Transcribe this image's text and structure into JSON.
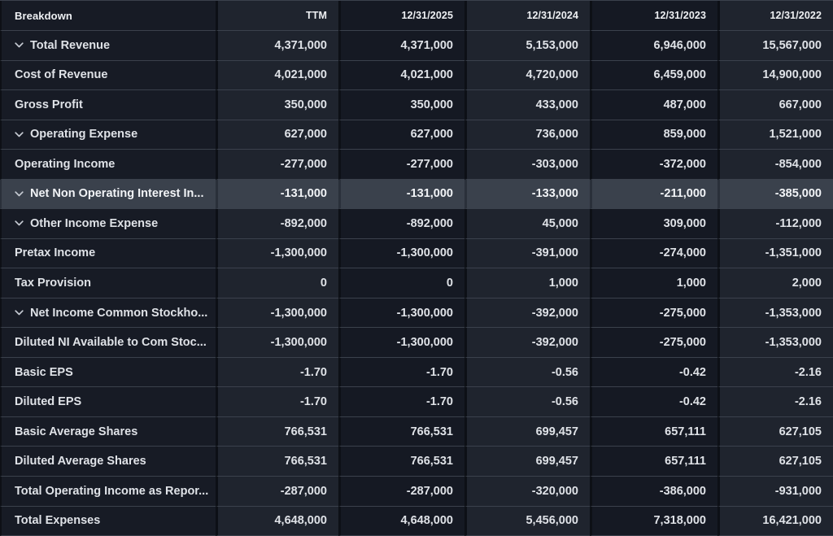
{
  "table": {
    "columns": [
      "Breakdown",
      "TTM",
      "12/31/2025",
      "12/31/2024",
      "12/31/2023",
      "12/31/2022"
    ],
    "rows": [
      {
        "label": "Total Revenue",
        "expandable": true,
        "highlighted": false,
        "values": [
          "4,371,000",
          "4,371,000",
          "5,153,000",
          "6,946,000",
          "15,567,000"
        ]
      },
      {
        "label": "Cost of Revenue",
        "expandable": false,
        "highlighted": false,
        "values": [
          "4,021,000",
          "4,021,000",
          "4,720,000",
          "6,459,000",
          "14,900,000"
        ]
      },
      {
        "label": "Gross Profit",
        "expandable": false,
        "highlighted": false,
        "values": [
          "350,000",
          "350,000",
          "433,000",
          "487,000",
          "667,000"
        ]
      },
      {
        "label": "Operating Expense",
        "expandable": true,
        "highlighted": false,
        "values": [
          "627,000",
          "627,000",
          "736,000",
          "859,000",
          "1,521,000"
        ]
      },
      {
        "label": "Operating Income",
        "expandable": false,
        "highlighted": false,
        "values": [
          "-277,000",
          "-277,000",
          "-303,000",
          "-372,000",
          "-854,000"
        ]
      },
      {
        "label": "Net Non Operating Interest In...",
        "expandable": true,
        "highlighted": true,
        "values": [
          "-131,000",
          "-131,000",
          "-133,000",
          "-211,000",
          "-385,000"
        ]
      },
      {
        "label": "Other Income Expense",
        "expandable": true,
        "highlighted": false,
        "values": [
          "-892,000",
          "-892,000",
          "45,000",
          "309,000",
          "-112,000"
        ]
      },
      {
        "label": "Pretax Income",
        "expandable": false,
        "highlighted": false,
        "values": [
          "-1,300,000",
          "-1,300,000",
          "-391,000",
          "-274,000",
          "-1,351,000"
        ]
      },
      {
        "label": "Tax Provision",
        "expandable": false,
        "highlighted": false,
        "values": [
          "0",
          "0",
          "1,000",
          "1,000",
          "2,000"
        ]
      },
      {
        "label": "Net Income Common Stockho...",
        "expandable": true,
        "highlighted": false,
        "values": [
          "-1,300,000",
          "-1,300,000",
          "-392,000",
          "-275,000",
          "-1,353,000"
        ]
      },
      {
        "label": "Diluted NI Available to Com Stoc...",
        "expandable": false,
        "highlighted": false,
        "values": [
          "-1,300,000",
          "-1,300,000",
          "-392,000",
          "-275,000",
          "-1,353,000"
        ]
      },
      {
        "label": "Basic EPS",
        "expandable": false,
        "highlighted": false,
        "values": [
          "-1.70",
          "-1.70",
          "-0.56",
          "-0.42",
          "-2.16"
        ]
      },
      {
        "label": "Diluted EPS",
        "expandable": false,
        "highlighted": false,
        "values": [
          "-1.70",
          "-1.70",
          "-0.56",
          "-0.42",
          "-2.16"
        ]
      },
      {
        "label": "Basic Average Shares",
        "expandable": false,
        "highlighted": false,
        "values": [
          "766,531",
          "766,531",
          "699,457",
          "657,111",
          "627,105"
        ]
      },
      {
        "label": "Diluted Average Shares",
        "expandable": false,
        "highlighted": false,
        "values": [
          "766,531",
          "766,531",
          "699,457",
          "657,111",
          "627,105"
        ]
      },
      {
        "label": "Total Operating Income as Repor...",
        "expandable": false,
        "highlighted": false,
        "values": [
          "-287,000",
          "-287,000",
          "-320,000",
          "-386,000",
          "-931,000"
        ]
      },
      {
        "label": "Total Expenses",
        "expandable": false,
        "highlighted": false,
        "values": [
          "4,648,000",
          "4,648,000",
          "5,456,000",
          "7,318,000",
          "16,421,000"
        ]
      }
    ]
  },
  "icons": {
    "expand_toggle": "chevron-down-icon"
  },
  "colors": {
    "column_dark": "#151923",
    "column_light": "#1f242e",
    "first_column": "#171b25",
    "highlight_row": "#3a414c",
    "highlight_gap": "#2a303a",
    "row_border": "#3b414c",
    "column_gap": "#0d1016",
    "text_primary": "#dfe2e7",
    "header_text": "#eef0f3",
    "chevron": "#c6cbd3"
  }
}
